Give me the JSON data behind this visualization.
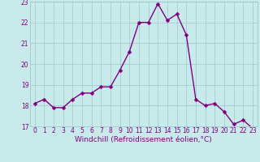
{
  "hours": [
    0,
    1,
    2,
    3,
    4,
    5,
    6,
    7,
    8,
    9,
    10,
    11,
    12,
    13,
    14,
    15,
    16,
    17,
    18,
    19,
    20,
    21,
    22,
    23
  ],
  "values": [
    18.1,
    18.3,
    17.9,
    17.9,
    18.3,
    18.6,
    18.6,
    18.9,
    18.9,
    19.7,
    20.6,
    22.0,
    22.0,
    22.9,
    22.1,
    22.4,
    21.4,
    18.3,
    18.0,
    18.1,
    17.7,
    17.1,
    17.3,
    16.9
  ],
  "line_color": "#800080",
  "marker_color": "#800080",
  "bg_color": "#c8eaea",
  "grid_color": "#9ec8c8",
  "xlabel": "Windchill (Refroidissement éolien,°C)",
  "xlim": [
    -0.5,
    23.5
  ],
  "ylim": [
    17.0,
    23.0
  ],
  "yticks": [
    17,
    18,
    19,
    20,
    21,
    22,
    23
  ],
  "xticks": [
    0,
    1,
    2,
    3,
    4,
    5,
    6,
    7,
    8,
    9,
    10,
    11,
    12,
    13,
    14,
    15,
    16,
    17,
    18,
    19,
    20,
    21,
    22,
    23
  ],
  "tick_color": "#800080",
  "tick_fontsize": 5.5,
  "xlabel_fontsize": 6.5,
  "linewidth": 1.0,
  "markersize": 2.5
}
